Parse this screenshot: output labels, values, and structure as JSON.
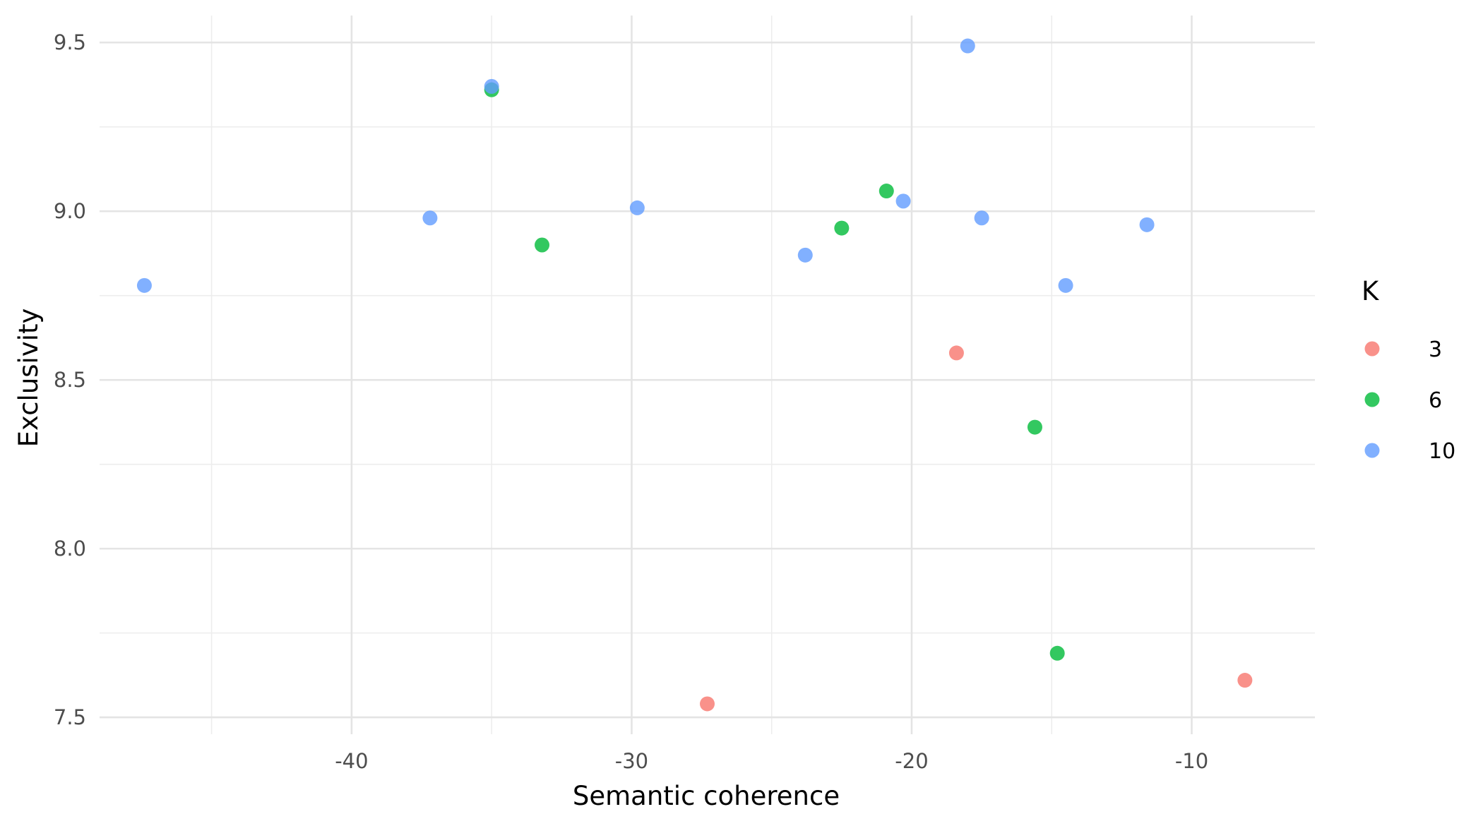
{
  "chart_data": {
    "type": "scatter",
    "xlabel": "Semantic coherence",
    "ylabel": "Exclusivity",
    "xlim": [
      -49.0,
      -5.6
    ],
    "ylim": [
      7.45,
      9.58
    ],
    "x_ticks": [
      -40,
      -30,
      -20,
      -10
    ],
    "x_tick_labels": [
      "-40",
      "-30",
      "-20",
      "-10"
    ],
    "x_minor": [
      -45,
      -35,
      -25,
      -15
    ],
    "y_ticks": [
      7.5,
      8.0,
      8.5,
      9.0,
      9.5
    ],
    "y_tick_labels": [
      "7.5",
      "8.0",
      "8.5",
      "9.0",
      "9.5"
    ],
    "y_minor": [
      7.75,
      8.25,
      8.75,
      9.25
    ],
    "grid": true,
    "legend": {
      "title": "K",
      "position": "right"
    },
    "series": [
      {
        "name": "3",
        "color": "#F8766D",
        "points": [
          {
            "x": -27.3,
            "y": 7.54
          },
          {
            "x": -18.4,
            "y": 8.58
          },
          {
            "x": -8.1,
            "y": 7.61
          }
        ]
      },
      {
        "name": "6",
        "color": "#00BA38",
        "points": [
          {
            "x": -35.0,
            "y": 9.36
          },
          {
            "x": -33.2,
            "y": 8.9
          },
          {
            "x": -22.5,
            "y": 8.95
          },
          {
            "x": -20.9,
            "y": 9.06
          },
          {
            "x": -15.6,
            "y": 8.36
          },
          {
            "x": -14.8,
            "y": 7.69
          }
        ]
      },
      {
        "name": "10",
        "color": "#619CFF",
        "points": [
          {
            "x": -47.4,
            "y": 8.78
          },
          {
            "x": -37.2,
            "y": 8.98
          },
          {
            "x": -35.0,
            "y": 9.37
          },
          {
            "x": -29.8,
            "y": 9.01
          },
          {
            "x": -23.8,
            "y": 8.87
          },
          {
            "x": -20.3,
            "y": 9.03
          },
          {
            "x": -18.0,
            "y": 9.49
          },
          {
            "x": -17.5,
            "y": 8.98
          },
          {
            "x": -14.5,
            "y": 8.78
          },
          {
            "x": -11.6,
            "y": 8.96
          }
        ]
      }
    ]
  }
}
